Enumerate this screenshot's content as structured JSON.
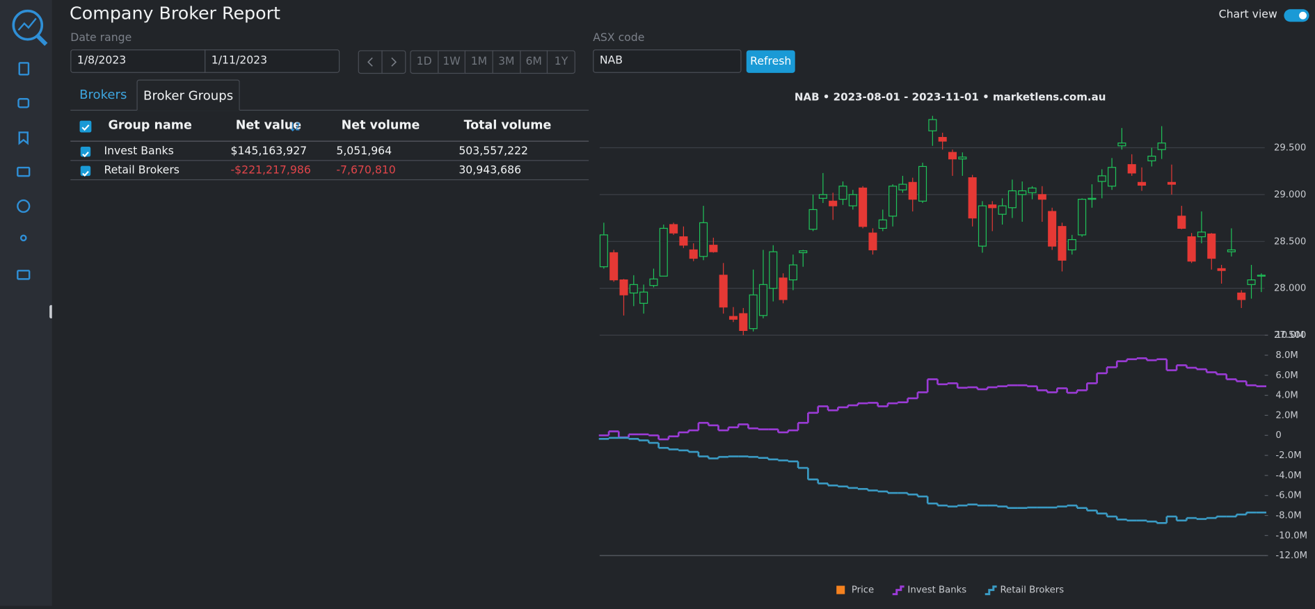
{
  "header": {
    "title": "Company Broker Report",
    "chart_view_label": "Chart view",
    "chart_view_on": true
  },
  "filters": {
    "date_range_label": "Date range",
    "start_date": "1/8/2023",
    "end_date": "1/11/2023",
    "periods": [
      "1D",
      "1W",
      "1M",
      "3M",
      "6M",
      "1Y"
    ],
    "asx_code_label": "ASX code",
    "asx_code": "NAB",
    "refresh": "Refresh"
  },
  "tabs": [
    "Brokers",
    "Broker Groups"
  ],
  "active_tab": 1,
  "table": {
    "columns": [
      "Group name",
      "Net value",
      "Net volume",
      "Total volume"
    ],
    "sorted_column": 1,
    "rows": [
      [
        "Invest Banks",
        "$145,163,927",
        "5,051,964",
        "503,557,222"
      ],
      [
        "Retail Brokers",
        "-$221,217,986",
        "-7,670,810",
        "30,943,686"
      ]
    ]
  },
  "chart_data": [
    {
      "type": "candlestick",
      "title": "NAB • 2023-08-01 - 2023-11-01 • marketlens.com.au",
      "name": "Price",
      "color": "#f5821f",
      "up_color": "#1fc55a",
      "down_color": "#e53935",
      "grid": true,
      "ylim": [
        27.5,
        29.86
      ],
      "yticks": [
        {
          "value": 27.5,
          "label": "27.500"
        },
        {
          "value": 28,
          "label": "28.000"
        },
        {
          "value": 28.5,
          "label": "28.500"
        },
        {
          "value": 29,
          "label": "29.000"
        },
        {
          "value": 29.5,
          "label": "29.500"
        }
      ],
      "open": [
        28.23,
        28.38,
        28.09,
        27.95,
        27.84,
        28.03,
        28.13,
        28.68,
        28.55,
        28.41,
        28.34,
        28.46,
        28.14,
        27.7,
        27.73,
        27.57,
        27.71,
        28.0,
        28.11,
        28.09,
        28.38,
        28.63,
        28.96,
        28.93,
        28.95,
        28.88,
        29.07,
        28.59,
        28.64,
        28.77,
        29.05,
        29.13,
        28.93,
        29.68,
        29.61,
        29.45,
        29.38,
        29.18,
        28.45,
        28.89,
        28.79,
        28.86,
        29.0,
        29.02,
        29.0,
        28.82,
        28.66,
        28.41,
        28.57,
        28.95,
        29.14,
        29.09,
        29.52,
        29.32,
        29.13,
        29.36,
        29.48,
        29.13,
        28.77,
        28.55,
        28.55,
        28.58,
        28.21,
        28.39,
        27.95,
        28.04,
        28.13
      ],
      "high": [
        28.7,
        28.41,
        28.1,
        28.14,
        28.04,
        28.21,
        28.68,
        28.7,
        28.66,
        28.48,
        28.88,
        28.54,
        28.27,
        27.8,
        27.79,
        28.2,
        28.41,
        28.46,
        28.16,
        28.36,
        28.41,
        29.0,
        29.23,
        29.02,
        29.14,
        29.05,
        29.09,
        28.64,
        28.84,
        29.11,
        29.2,
        29.18,
        29.34,
        29.84,
        29.66,
        29.48,
        29.45,
        29.21,
        28.93,
        28.93,
        28.96,
        29.16,
        29.14,
        29.09,
        29.09,
        28.86,
        28.7,
        28.57,
        28.96,
        29.11,
        29.27,
        29.39,
        29.71,
        29.43,
        29.29,
        29.5,
        29.73,
        29.32,
        28.88,
        28.59,
        28.82,
        28.59,
        28.25,
        28.64,
        27.98,
        28.25,
        28.16
      ],
      "low": [
        28.21,
        28.07,
        27.71,
        27.81,
        27.73,
        28.01,
        28.13,
        28.57,
        28.43,
        28.29,
        28.3,
        28.38,
        27.73,
        27.64,
        27.5,
        27.54,
        27.68,
        27.86,
        27.84,
        27.98,
        28.23,
        28.61,
        28.91,
        28.73,
        28.89,
        28.84,
        28.64,
        28.36,
        28.61,
        28.66,
        29.02,
        28.82,
        28.91,
        29.52,
        29.48,
        29.2,
        29.2,
        28.66,
        28.38,
        28.61,
        28.68,
        28.75,
        28.71,
        28.95,
        28.71,
        28.41,
        28.18,
        28.36,
        28.55,
        28.86,
        28.96,
        29.05,
        29.48,
        29.2,
        29.04,
        29.3,
        29.38,
        29.0,
        28.63,
        28.27,
        28.48,
        28.2,
        28.05,
        28.34,
        27.79,
        27.89,
        27.96
      ],
      "close": [
        28.57,
        28.09,
        27.93,
        28.04,
        27.96,
        28.1,
        28.64,
        28.59,
        28.46,
        28.32,
        28.7,
        28.39,
        27.8,
        27.67,
        27.55,
        27.93,
        28.04,
        28.39,
        27.88,
        28.25,
        28.4,
        28.84,
        29.0,
        28.88,
        29.09,
        29.0,
        28.66,
        28.41,
        28.73,
        29.09,
        29.11,
        28.95,
        29.3,
        29.8,
        29.57,
        29.38,
        29.4,
        28.75,
        28.88,
        28.86,
        28.88,
        29.04,
        29.04,
        29.07,
        28.95,
        28.45,
        28.3,
        28.52,
        28.95,
        28.96,
        29.2,
        29.29,
        29.55,
        29.23,
        29.1,
        29.41,
        29.55,
        29.11,
        28.64,
        28.29,
        28.6,
        28.32,
        28.19,
        28.41,
        27.88,
        28.09,
        28.14
      ]
    },
    {
      "type": "line",
      "step": true,
      "legend": "bottom",
      "ylim": [
        -12000000,
        10000000
      ],
      "yticks": [
        {
          "value": 10000000,
          "label": "10.0M"
        },
        {
          "value": 8000000,
          "label": "8.0M"
        },
        {
          "value": 6000000,
          "label": "6.0M"
        },
        {
          "value": 4000000,
          "label": "4.0M"
        },
        {
          "value": 2000000,
          "label": "2.0M"
        },
        0,
        {
          "value": -2000000,
          "label": "-2.0M"
        },
        {
          "value": -4000000,
          "label": "-4.0M"
        },
        {
          "value": -6000000,
          "label": "-6.0M"
        },
        {
          "value": -8000000,
          "label": "-8.0M"
        },
        {
          "value": -10000000,
          "label": "-10.0M"
        },
        {
          "value": -12000000,
          "label": "-12.0M"
        }
      ],
      "series": [
        {
          "name": "Invest Banks",
          "color": "#9b3bd6",
          "values": [
            0,
            400000,
            -200000,
            100000,
            100000,
            0,
            -400000,
            -100000,
            300000,
            500000,
            1250000,
            1000000,
            500000,
            800000,
            1100000,
            700000,
            600000,
            600000,
            300000,
            500000,
            1250000,
            2250000,
            2900000,
            2500000,
            2800000,
            3000000,
            3200000,
            3250000,
            2900000,
            3200000,
            3300000,
            3700000,
            4300000,
            5600000,
            5100000,
            5200000,
            4750000,
            4800000,
            4600000,
            4800000,
            4900000,
            5000000,
            5000000,
            4900000,
            4500000,
            4300000,
            4700000,
            4250000,
            4500000,
            5200000,
            6200000,
            6800000,
            7400000,
            7600000,
            7700000,
            7500000,
            7600000,
            6500000,
            7000000,
            6750000,
            6600000,
            6300000,
            6100000,
            5600000,
            5400000,
            5000000,
            4900000
          ]
        },
        {
          "name": "Retail Brokers",
          "color": "#3a9bc4",
          "values": [
            -350000,
            -250000,
            -250000,
            -350000,
            -500000,
            -750000,
            -1250000,
            -1400000,
            -1500000,
            -1650000,
            -2100000,
            -2300000,
            -2150000,
            -2100000,
            -2100000,
            -2150000,
            -2250000,
            -2400000,
            -2500000,
            -2600000,
            -3250000,
            -4400000,
            -4800000,
            -5000000,
            -5100000,
            -5250000,
            -5350000,
            -5500000,
            -5600000,
            -5750000,
            -5750000,
            -5900000,
            -6100000,
            -6800000,
            -7000000,
            -7100000,
            -7000000,
            -6900000,
            -7000000,
            -7000000,
            -7100000,
            -7250000,
            -7250000,
            -7200000,
            -7200000,
            -7200000,
            -7100000,
            -7000000,
            -7250000,
            -7500000,
            -7800000,
            -8100000,
            -8400000,
            -8500000,
            -8500000,
            -8600000,
            -8750000,
            -8100000,
            -8500000,
            -8250000,
            -8350000,
            -8250000,
            -8100000,
            -8100000,
            -7900000,
            -7700000,
            -7700000
          ]
        }
      ]
    }
  ]
}
